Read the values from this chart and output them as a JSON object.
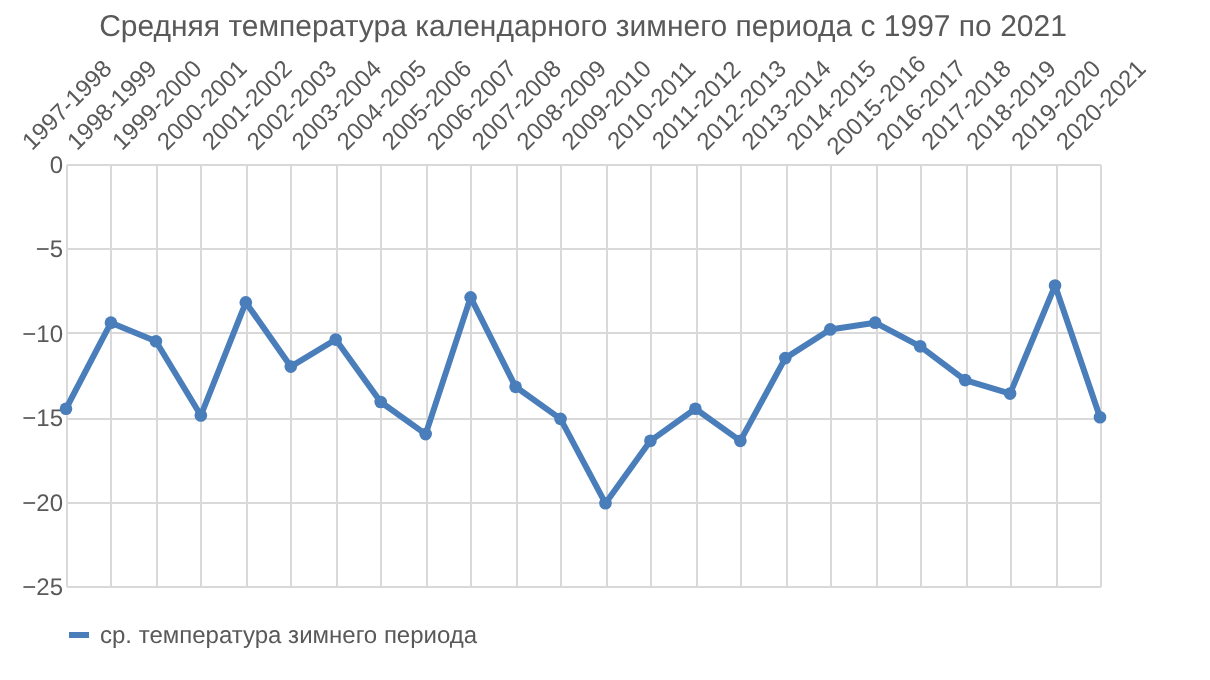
{
  "chart_data": {
    "type": "line",
    "title": "Средняя температура календарного зимнего периода с 1997 по 2021",
    "categories": [
      "1997-1998",
      "1998-1999",
      "1999-2000",
      "2000-2001",
      "2001-2002",
      "2002-2003",
      "2003-2004",
      "2004-2005",
      "2005-2006",
      "2006-2007",
      "2007-2008",
      "2008-2009",
      "2009-2010",
      "2010-2011",
      "2011-2012",
      "2012-2013",
      "2013-2014",
      "2014-2015",
      "20015-2016",
      "2016-2017",
      "2017-2018",
      "2018-2019",
      "2019-2020",
      "2020-2021"
    ],
    "series": [
      {
        "name": "ср. температура зимнего периода",
        "color": "#4a7ebb",
        "values": [
          -14.5,
          -9.4,
          -10.5,
          -14.9,
          -8.2,
          -12.0,
          -10.4,
          -14.1,
          -16.0,
          -7.9,
          -13.2,
          -15.1,
          -20.1,
          -16.4,
          -14.5,
          -16.4,
          -11.5,
          -9.8,
          -9.4,
          -10.8,
          -12.8,
          -13.6,
          -7.2,
          -15.0
        ]
      }
    ],
    "ylim": [
      -25,
      0
    ],
    "yticks": [
      0,
      -5,
      -10,
      -15,
      -20,
      -25
    ],
    "grid": true,
    "legend": "bottom",
    "marker": "circle",
    "line_style": "solid"
  }
}
